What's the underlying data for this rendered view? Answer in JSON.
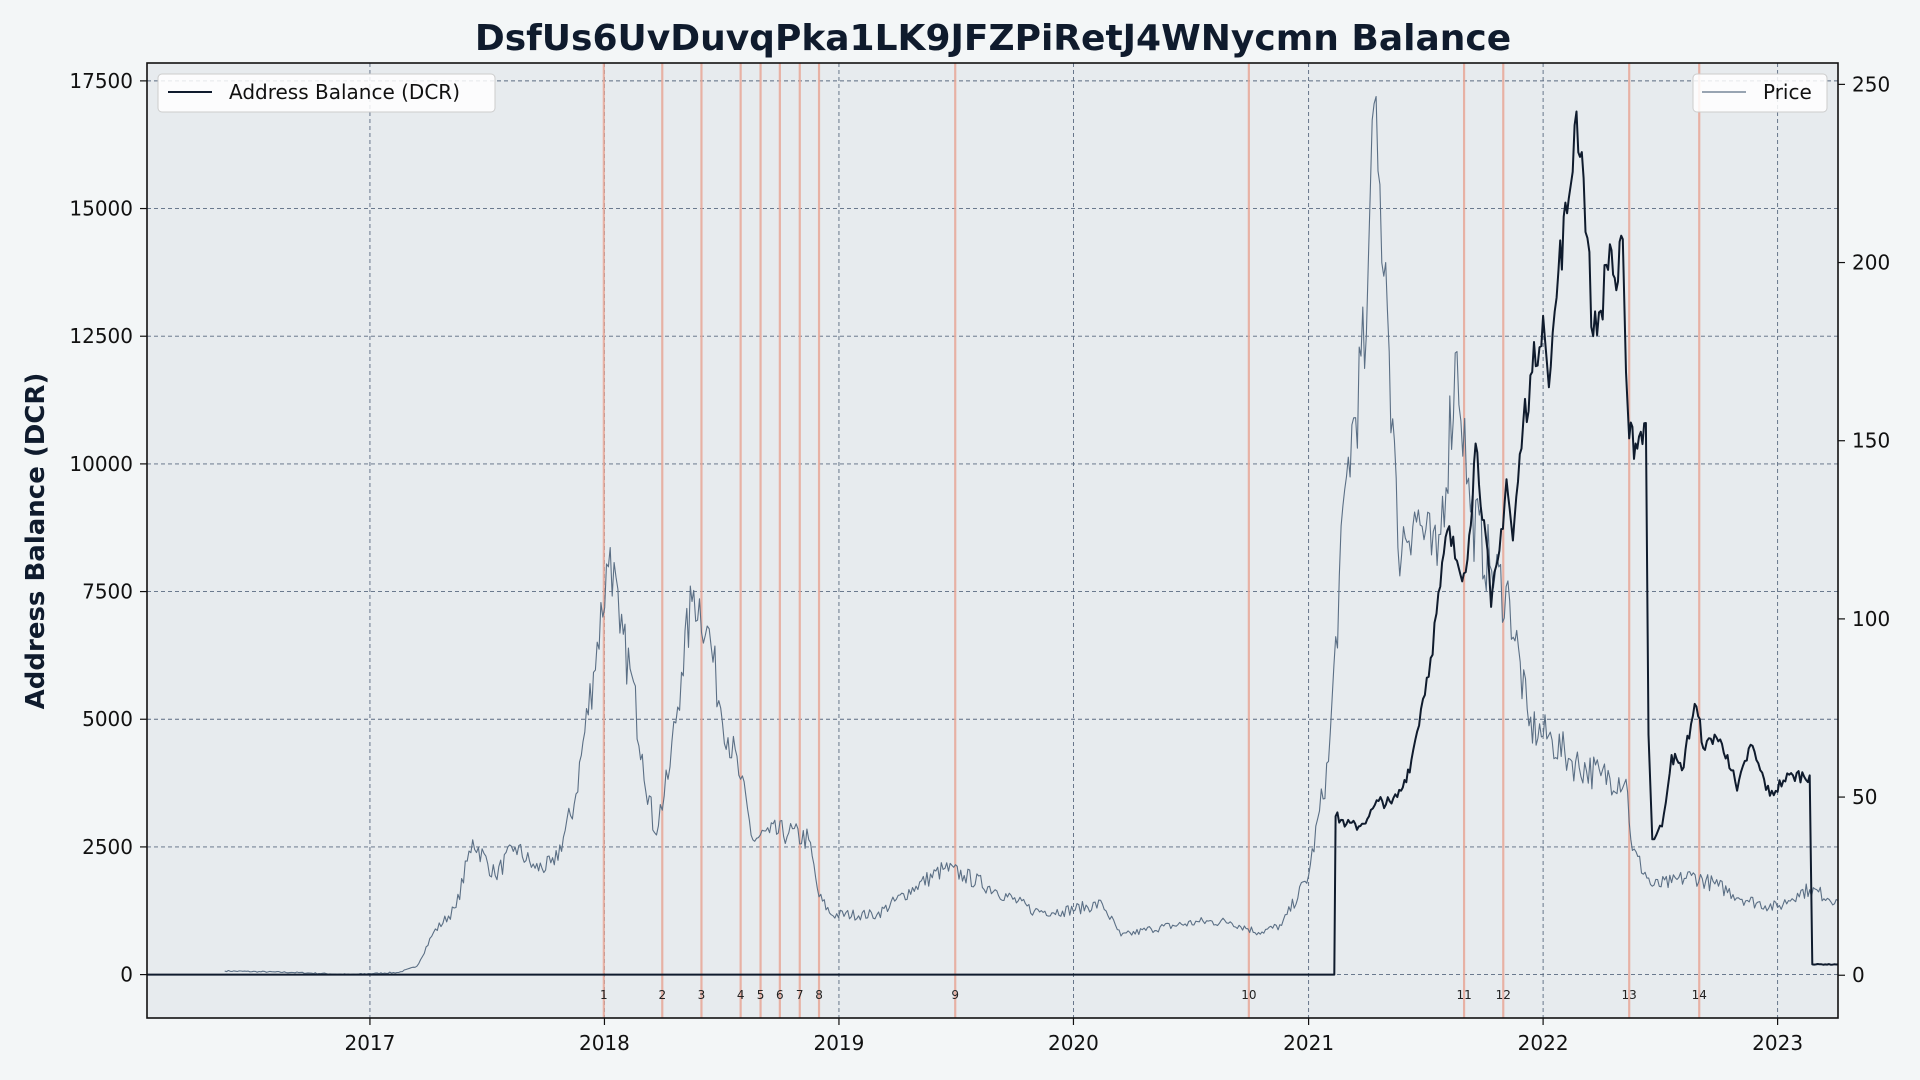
{
  "chart_data": {
    "type": "line",
    "title": "DsfUs6UvDuvqPka1LK9JFZPiRetJ4WNycmn Balance",
    "ylabel": "Address Balance (DCR)",
    "y2label": "",
    "xlim": [
      "2016-01-20",
      "2023-04-05"
    ],
    "ylim": [
      -850,
      17850
    ],
    "y2lim": [
      -12,
      256
    ],
    "x_ticks": [
      "2017",
      "2018",
      "2019",
      "2020",
      "2021",
      "2022",
      "2023"
    ],
    "y_ticks": [
      0,
      2500,
      5000,
      7500,
      10000,
      12500,
      15000,
      17500
    ],
    "y2_ticks": [
      0,
      50,
      100,
      150,
      200,
      250
    ],
    "grid": true,
    "colors": {
      "balance": "#0f1b2d",
      "price": "#5b6f85",
      "event": "#e8a898",
      "plot_bg": "#e7ebee",
      "grid": "#5a6a80"
    },
    "legend": {
      "left": {
        "label": "Address Balance (DCR)",
        "placement": "upper-left"
      },
      "right": {
        "label": "Price",
        "placement": "upper-right"
      }
    },
    "series": [
      {
        "name": "Address Balance (DCR)",
        "axis": "left",
        "points": [
          [
            "2016-01-20",
            0
          ],
          [
            "2021-02-10",
            0
          ],
          [
            "2021-02-12",
            3100
          ],
          [
            "2021-03-01",
            2950
          ],
          [
            "2021-03-20",
            2900
          ],
          [
            "2021-04-05",
            3100
          ],
          [
            "2021-04-20",
            3400
          ],
          [
            "2021-05-10",
            3350
          ],
          [
            "2021-05-25",
            3600
          ],
          [
            "2021-06-10",
            4200
          ],
          [
            "2021-06-25",
            5200
          ],
          [
            "2021-07-10",
            6200
          ],
          [
            "2021-07-25",
            7600
          ],
          [
            "2021-08-05",
            8700
          ],
          [
            "2021-08-20",
            8100
          ],
          [
            "2021-08-28",
            7700
          ],
          [
            "2021-09-08",
            8600
          ],
          [
            "2021-09-18",
            10400
          ],
          [
            "2021-10-01",
            8900
          ],
          [
            "2021-10-12",
            7200
          ],
          [
            "2021-10-25",
            8300
          ],
          [
            "2021-11-05",
            9700
          ],
          [
            "2021-11-15",
            8500
          ],
          [
            "2021-12-01",
            10800
          ],
          [
            "2021-12-15",
            11800
          ],
          [
            "2022-01-01",
            12900
          ],
          [
            "2022-01-10",
            11500
          ],
          [
            "2022-01-25",
            13800
          ],
          [
            "2022-02-10",
            15200
          ],
          [
            "2022-02-22",
            16900
          ],
          [
            "2022-03-05",
            15600
          ],
          [
            "2022-03-20",
            12500
          ],
          [
            "2022-04-01",
            13000
          ],
          [
            "2022-04-15",
            14300
          ],
          [
            "2022-04-25",
            13400
          ],
          [
            "2022-05-05",
            14400
          ],
          [
            "2022-05-10",
            11800
          ],
          [
            "2022-05-15",
            10500
          ],
          [
            "2022-05-25",
            10400
          ],
          [
            "2022-06-10",
            10800
          ],
          [
            "2022-06-14",
            4700
          ],
          [
            "2022-06-20",
            2650
          ],
          [
            "2022-07-05",
            2900
          ],
          [
            "2022-07-20",
            4300
          ],
          [
            "2022-08-05",
            4000
          ],
          [
            "2022-08-25",
            5300
          ],
          [
            "2022-09-10",
            4400
          ],
          [
            "2022-09-25",
            4700
          ],
          [
            "2022-10-15",
            4300
          ],
          [
            "2022-10-30",
            3600
          ],
          [
            "2022-11-20",
            4500
          ],
          [
            "2022-12-05",
            4000
          ],
          [
            "2022-12-20",
            3500
          ],
          [
            "2023-01-10",
            3800
          ],
          [
            "2023-01-25",
            3900
          ],
          [
            "2023-02-20",
            3900
          ],
          [
            "2023-02-24",
            200
          ],
          [
            "2023-04-05",
            200
          ]
        ]
      },
      {
        "name": "Price",
        "axis": "right",
        "points": [
          [
            "2016-05-20",
            1.2
          ],
          [
            "2016-09-01",
            0.8
          ],
          [
            "2016-12-01",
            0.2
          ],
          [
            "2017-02-15",
            0.8
          ],
          [
            "2017-03-15",
            2.5
          ],
          [
            "2017-04-10",
            12
          ],
          [
            "2017-05-15",
            19
          ],
          [
            "2017-06-10",
            38
          ],
          [
            "2017-07-15",
            28
          ],
          [
            "2017-08-15",
            36
          ],
          [
            "2017-09-15",
            30
          ],
          [
            "2017-10-15",
            31
          ],
          [
            "2017-11-15",
            48
          ],
          [
            "2017-12-15",
            85
          ],
          [
            "2018-01-10",
            120
          ],
          [
            "2018-01-25",
            96
          ],
          [
            "2018-02-10",
            86
          ],
          [
            "2018-03-01",
            62
          ],
          [
            "2018-03-20",
            40
          ],
          [
            "2018-04-10",
            55
          ],
          [
            "2018-05-01",
            85
          ],
          [
            "2018-05-20",
            108
          ],
          [
            "2018-06-10",
            98
          ],
          [
            "2018-07-01",
            75
          ],
          [
            "2018-08-01",
            55
          ],
          [
            "2018-08-20",
            38
          ],
          [
            "2018-09-15",
            40
          ],
          [
            "2018-10-15",
            40
          ],
          [
            "2018-11-15",
            38
          ],
          [
            "2018-12-01",
            22
          ],
          [
            "2018-12-20",
            17
          ],
          [
            "2019-03-01",
            17
          ],
          [
            "2019-05-01",
            25
          ],
          [
            "2019-06-15",
            30
          ],
          [
            "2019-07-15",
            28
          ],
          [
            "2019-09-01",
            24
          ],
          [
            "2019-11-01",
            18
          ],
          [
            "2019-12-15",
            18
          ],
          [
            "2020-02-15",
            20
          ],
          [
            "2020-03-15",
            11
          ],
          [
            "2020-05-01",
            13
          ],
          [
            "2020-07-15",
            15
          ],
          [
            "2020-09-01",
            15
          ],
          [
            "2020-10-15",
            12
          ],
          [
            "2020-11-20",
            14
          ],
          [
            "2021-01-01",
            28
          ],
          [
            "2021-02-01",
            60
          ],
          [
            "2021-03-01",
            140
          ],
          [
            "2021-04-01",
            180
          ],
          [
            "2021-04-10",
            240
          ],
          [
            "2021-05-01",
            200
          ],
          [
            "2021-05-20",
            120
          ],
          [
            "2021-06-15",
            130
          ],
          [
            "2021-07-20",
            115
          ],
          [
            "2021-08-20",
            175
          ],
          [
            "2021-09-10",
            130
          ],
          [
            "2021-10-10",
            115
          ],
          [
            "2021-11-10",
            105
          ],
          [
            "2021-12-10",
            70
          ],
          [
            "2022-01-15",
            66
          ],
          [
            "2022-02-15",
            60
          ],
          [
            "2022-04-01",
            56
          ],
          [
            "2022-05-10",
            55
          ],
          [
            "2022-05-20",
            35
          ],
          [
            "2022-06-20",
            25
          ],
          [
            "2022-07-20",
            26
          ],
          [
            "2022-08-20",
            28
          ],
          [
            "2022-10-01",
            25
          ],
          [
            "2022-11-15",
            21
          ],
          [
            "2023-01-01",
            19
          ],
          [
            "2023-02-01",
            23
          ],
          [
            "2023-02-20",
            24
          ],
          [
            "2023-04-05",
            21
          ]
        ]
      }
    ],
    "events": [
      {
        "label": "1",
        "date": "2017-12-31"
      },
      {
        "label": "2",
        "date": "2018-04-01"
      },
      {
        "label": "3",
        "date": "2018-06-01"
      },
      {
        "label": "4",
        "date": "2018-08-01"
      },
      {
        "label": "5",
        "date": "2018-09-01"
      },
      {
        "label": "6",
        "date": "2018-10-01"
      },
      {
        "label": "7",
        "date": "2018-11-01"
      },
      {
        "label": "8",
        "date": "2018-12-01"
      },
      {
        "label": "9",
        "date": "2019-07-01"
      },
      {
        "label": "10",
        "date": "2020-09-30"
      },
      {
        "label": "11",
        "date": "2021-08-31"
      },
      {
        "label": "12",
        "date": "2021-10-31"
      },
      {
        "label": "13",
        "date": "2022-05-15"
      },
      {
        "label": "14",
        "date": "2022-09-01"
      }
    ]
  }
}
